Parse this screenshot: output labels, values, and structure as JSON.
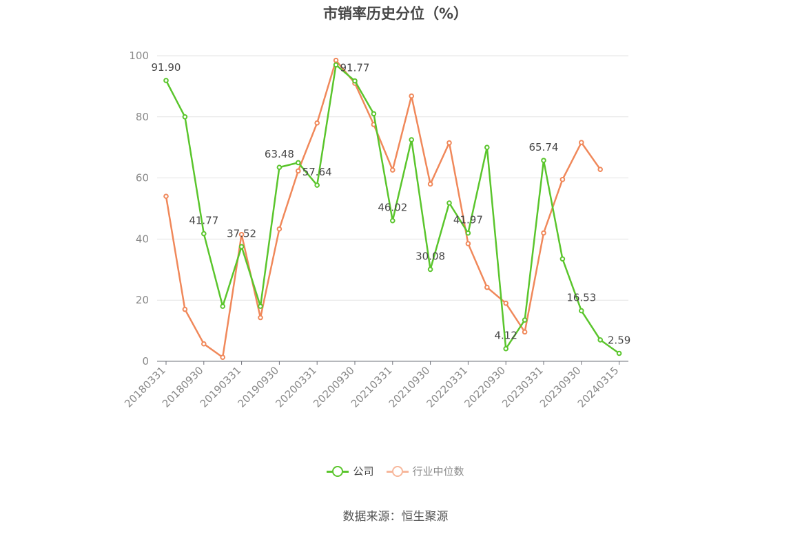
{
  "chart_data": {
    "type": "line",
    "title": "市销率历史分位（%）",
    "x_labels_shown": [
      "20180331",
      "20180930",
      "20190331",
      "20190930",
      "20200331",
      "20200930",
      "20210331",
      "20210930",
      "20220331",
      "20220930",
      "20230331",
      "20230930",
      "20240315"
    ],
    "y_ticks": [
      "0",
      "20",
      "40",
      "60",
      "80",
      "100"
    ],
    "ylim": [
      0,
      100
    ],
    "grid": true,
    "legend_position": "bottom",
    "series": [
      {
        "name": "公司",
        "color": "#5ac52c",
        "values": [
          91.9,
          80.0,
          41.77,
          18.0,
          37.52,
          18.0,
          63.48,
          65.0,
          57.64,
          97.0,
          91.77,
          81.0,
          46.02,
          72.5,
          30.08,
          51.8,
          41.97,
          70.0,
          4.12,
          13.5,
          65.74,
          33.5,
          16.53,
          7.0,
          2.59
        ],
        "labels": [
          "91.90",
          "",
          "41.77",
          "",
          "37.52",
          "",
          "63.48",
          "",
          "57.64",
          "",
          "91.77",
          "",
          "46.02",
          "",
          "30.08",
          "",
          "41.97",
          "",
          "4.12",
          "",
          "65.74",
          "",
          "16.53",
          "",
          "2.59"
        ]
      },
      {
        "name": "行业中位数",
        "color": "#f0885a",
        "values": [
          54.0,
          17.0,
          5.7,
          1.3,
          41.5,
          14.3,
          43.3,
          62.3,
          78.0,
          98.5,
          91.0,
          77.5,
          62.6,
          86.8,
          58.0,
          71.5,
          38.5,
          24.2,
          19.0,
          9.6,
          42.0,
          59.5,
          71.6,
          62.8
        ]
      }
    ]
  },
  "legend": {
    "items": [
      {
        "label": "公司",
        "color": "#5ac52c",
        "text_color": "#464646"
      },
      {
        "label": "行业中位数",
        "color": "#f7b79b",
        "text_color": "#8a8a8a"
      }
    ]
  },
  "source_note": "数据来源：恒生聚源"
}
